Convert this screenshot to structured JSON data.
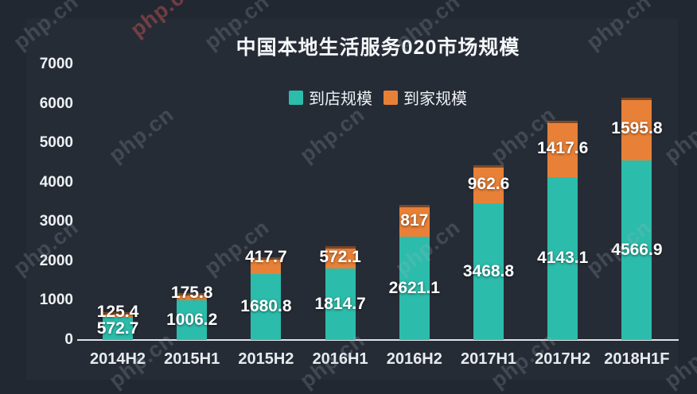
{
  "watermark": {
    "text": "php.cn"
  },
  "chart_data": {
    "type": "bar",
    "stacked": true,
    "title": "中国本地生活服务020市场规模",
    "categories": [
      "2014H2",
      "2015H1",
      "2015H2",
      "2016H1",
      "2016H2",
      "2017H1",
      "2017H2",
      "2018H1F"
    ],
    "series": [
      {
        "name": "到店规模",
        "color": "#2cbcab",
        "values": [
          572.7,
          1006.2,
          1680.8,
          1814.7,
          2621.1,
          3468.8,
          4143.1,
          4566.9
        ]
      },
      {
        "name": "到家规模",
        "color": "#e88137",
        "values": [
          125.4,
          175.8,
          417.7,
          572.1,
          817,
          962.6,
          1417.6,
          1595.8
        ]
      }
    ],
    "ylim": [
      0,
      7000
    ],
    "yticks": [
      0,
      1000,
      2000,
      3000,
      4000,
      5000,
      6000,
      7000
    ],
    "xlabel": "",
    "ylabel": "",
    "legend_position": "top-center",
    "grid": false,
    "background": "#262c36",
    "text_color": "#ffffff"
  }
}
